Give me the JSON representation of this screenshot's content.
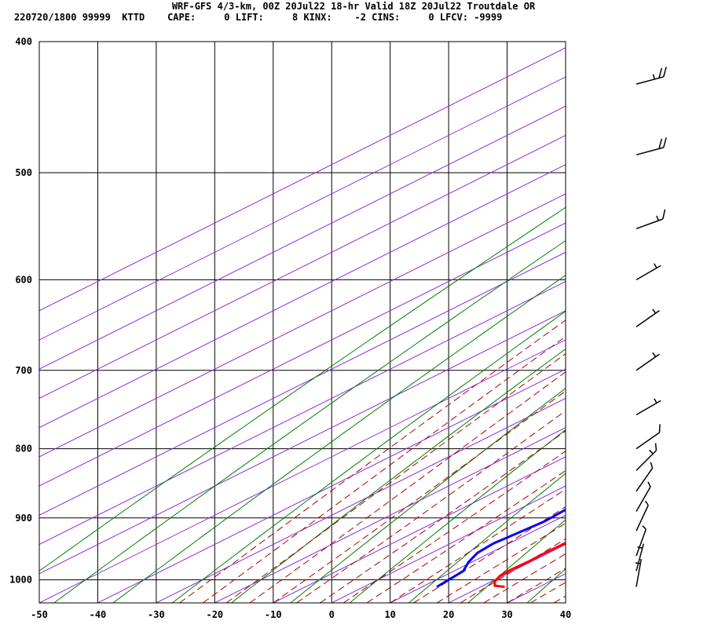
{
  "header": {
    "title": "WRF-GFS 4/3-km, 00Z 20Jul22 18-hr Valid 18Z 20Jul22 Troutdale OR",
    "stats": "220720/1800 99999  KTTD    CAPE:     0 LIFT:     8 KINX:    -2 CINS:     0 LFCV: -9999"
  },
  "colors": {
    "temperature": "#ff0000",
    "dewpoint": "#0000ff",
    "isotherm": "#8a2be2",
    "dry_adiabat": "#008000",
    "moist_adiabat": "#aa0000",
    "isobar": "#000000"
  },
  "chart_data": {
    "type": "line",
    "chart_kind": "skew-T log-P sounding",
    "title": "",
    "xlabel": "",
    "ylabel": "",
    "x_ticks": [
      -50,
      -40,
      -30,
      -20,
      -10,
      0,
      10,
      20,
      30,
      40
    ],
    "p_ticks": [
      400,
      500,
      600,
      700,
      800,
      900,
      1000
    ],
    "xlim": [
      -50,
      40
    ],
    "plim": [
      1040,
      400
    ],
    "y_scale": "log",
    "grid": true,
    "series": [
      {
        "key": "temperature",
        "points": [
          [
            1012,
            24.1
          ],
          [
            1010,
            22
          ],
          [
            1003,
            20.6
          ],
          [
            993,
            19.5
          ],
          [
            983,
            19.3
          ],
          [
            970,
            19.5
          ],
          [
            955,
            19.4
          ],
          [
            935,
            19.5
          ],
          [
            910,
            17.5
          ],
          [
            880,
            16.3
          ],
          [
            850,
            14.9
          ],
          [
            800,
            13.1
          ],
          [
            760,
            10.2
          ],
          [
            700,
            4.3
          ],
          [
            650,
            -1.8
          ],
          [
            600,
            -7.7
          ],
          [
            550,
            -14.6
          ],
          [
            500,
            -21.9
          ],
          [
            425,
            -34.3
          ]
        ]
      },
      {
        "key": "dewpoint",
        "points": [
          [
            1012,
            12.5
          ],
          [
            985,
            11.6
          ],
          [
            970,
            9.4
          ],
          [
            955,
            7.8
          ],
          [
            940,
            7.3
          ],
          [
            905,
            8.5
          ],
          [
            875,
            7.8
          ],
          [
            845,
            5.5
          ],
          [
            820,
            1.4
          ],
          [
            800,
            -4.2
          ],
          [
            775,
            -17.2
          ],
          [
            745,
            -21.8
          ],
          [
            730,
            -21.7
          ],
          [
            700,
            -21.7
          ],
          [
            650,
            -25.4
          ],
          [
            600,
            -31.5
          ],
          [
            545,
            -36.7
          ],
          [
            500,
            -37.8
          ],
          [
            425,
            -38.6
          ]
        ]
      }
    ],
    "wind_barbs": [
      {
        "p": 1012,
        "dir": 190,
        "kt": 5
      },
      {
        "p": 985,
        "dir": 195,
        "kt": 5
      },
      {
        "p": 960,
        "dir": 200,
        "kt": 10
      },
      {
        "p": 920,
        "dir": 205,
        "kt": 10
      },
      {
        "p": 890,
        "dir": 210,
        "kt": 10
      },
      {
        "p": 860,
        "dir": 215,
        "kt": 10
      },
      {
        "p": 830,
        "dir": 225,
        "kt": 15
      },
      {
        "p": 800,
        "dir": 235,
        "kt": 10
      },
      {
        "p": 755,
        "dir": 240,
        "kt": 5
      },
      {
        "p": 700,
        "dir": 235,
        "kt": 5
      },
      {
        "p": 650,
        "dir": 235,
        "kt": 5
      },
      {
        "p": 600,
        "dir": 240,
        "kt": 5
      },
      {
        "p": 550,
        "dir": 250,
        "kt": 15
      },
      {
        "p": 485,
        "dir": 255,
        "kt": 20
      },
      {
        "p": 430,
        "dir": 255,
        "kt": 25
      }
    ]
  }
}
